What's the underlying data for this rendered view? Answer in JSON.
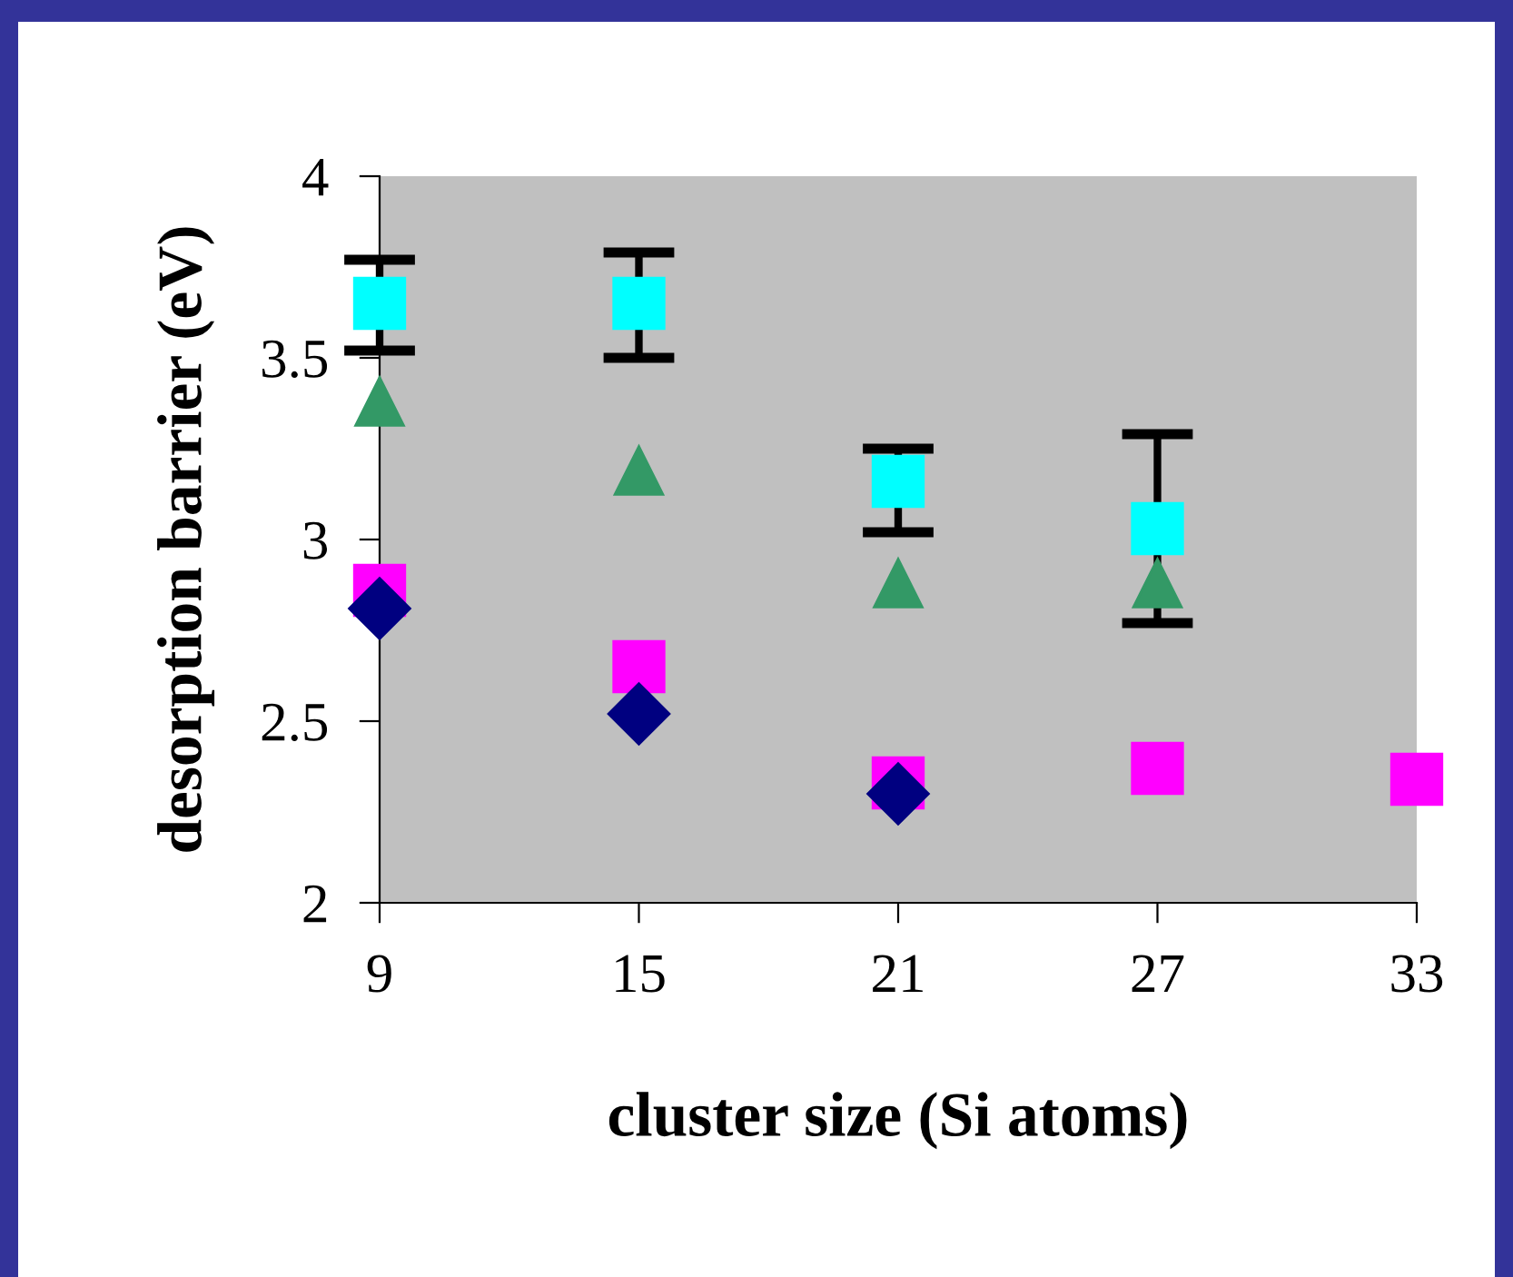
{
  "chart_data": {
    "type": "scatter",
    "xlabel": "cluster size (Si atoms)",
    "ylabel": "desorption barrier (eV)",
    "xlim": [
      9,
      33
    ],
    "xticks": [
      9,
      15,
      21,
      27,
      33
    ],
    "ylim": [
      2,
      4
    ],
    "yticks": [
      2,
      2.5,
      3,
      3.5,
      4
    ],
    "grid": false,
    "legend": false,
    "series": [
      {
        "color": "#ff00ff",
        "marker": "square",
        "x": [
          9,
          15,
          21,
          27,
          33
        ],
        "values": [
          2.86,
          2.65,
          2.33,
          2.37,
          2.34
        ]
      },
      {
        "color": "#000080",
        "marker": "diamond",
        "x": [
          9,
          15,
          21
        ],
        "values": [
          2.81,
          2.52,
          2.3
        ]
      },
      {
        "color": "#339966",
        "marker": "triangle",
        "x": [
          9,
          15,
          21,
          27
        ],
        "values": [
          3.38,
          3.19,
          2.88,
          2.88
        ]
      },
      {
        "color": "#00ffff",
        "marker": "square",
        "x": [
          9,
          15,
          21,
          27
        ],
        "values": [
          3.65,
          3.65,
          3.16,
          3.03
        ],
        "errors": [
          [
            3.52,
            3.77
          ],
          [
            3.5,
            3.79
          ],
          [
            3.02,
            3.25
          ],
          [
            2.77,
            3.29
          ]
        ]
      }
    ]
  }
}
